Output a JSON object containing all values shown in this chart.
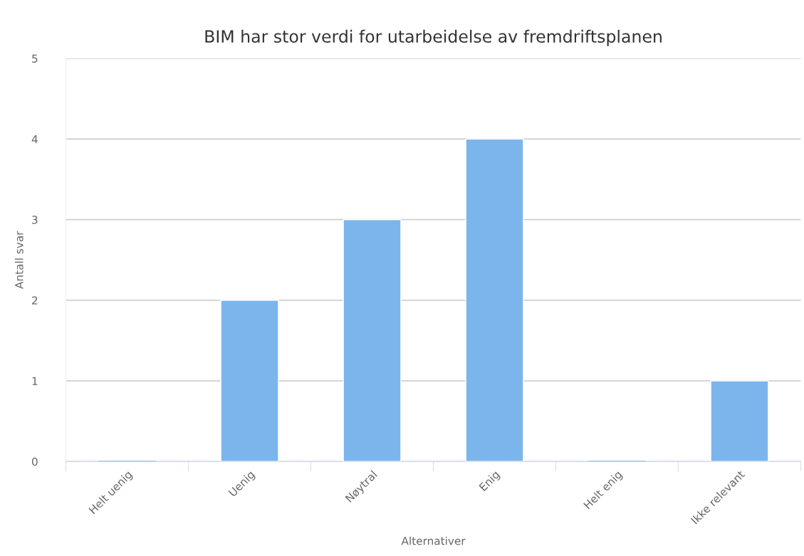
{
  "chart_data": {
    "type": "bar",
    "title": "BIM har stor verdi for utarbeidelse av fremdriftsplanen",
    "xlabel": "Alternativer",
    "ylabel": "Antall svar",
    "categories": [
      "Helt uenig",
      "Uenig",
      "Nøytral",
      "Enig",
      "Helt enig",
      "Ikke relevant"
    ],
    "values": [
      0,
      2,
      3,
      4,
      0,
      1
    ],
    "color": "#7cb5ec",
    "ylim": [
      0,
      5
    ],
    "yticks": [
      0,
      1,
      2,
      3,
      4,
      5
    ],
    "grid": "y",
    "legend": false
  }
}
